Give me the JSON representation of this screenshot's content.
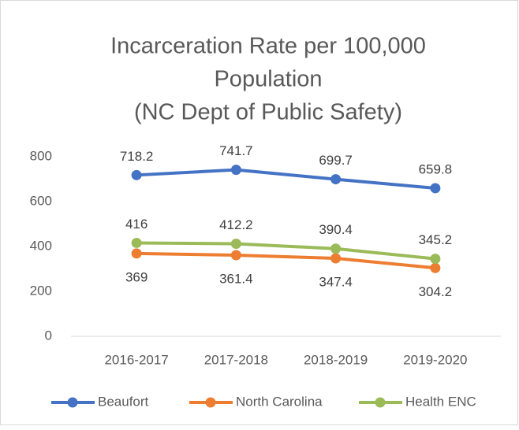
{
  "chart_data": {
    "type": "line",
    "title": [
      "Incarceration Rate per 100,000",
      "Population",
      "(NC Dept of Public Safety)"
    ],
    "categories": [
      "2016-2017",
      "2017-2018",
      "2018-2019",
      "2019-2020"
    ],
    "series": [
      {
        "name": "Beaufort",
        "color": "#4472c4",
        "values": [
          718.2,
          741.7,
          699.7,
          659.8
        ]
      },
      {
        "name": "North Carolina",
        "color": "#ed7d31",
        "values": [
          369,
          361.4,
          347.4,
          304.2
        ]
      },
      {
        "name": "Health ENC",
        "color": "#9bbb59",
        "values": [
          416,
          412.2,
          390.4,
          345.2
        ]
      }
    ],
    "ylim": [
      0,
      800
    ],
    "yticks": [
      0,
      200,
      400,
      600,
      800
    ],
    "grid": false,
    "legend": "bottom"
  }
}
